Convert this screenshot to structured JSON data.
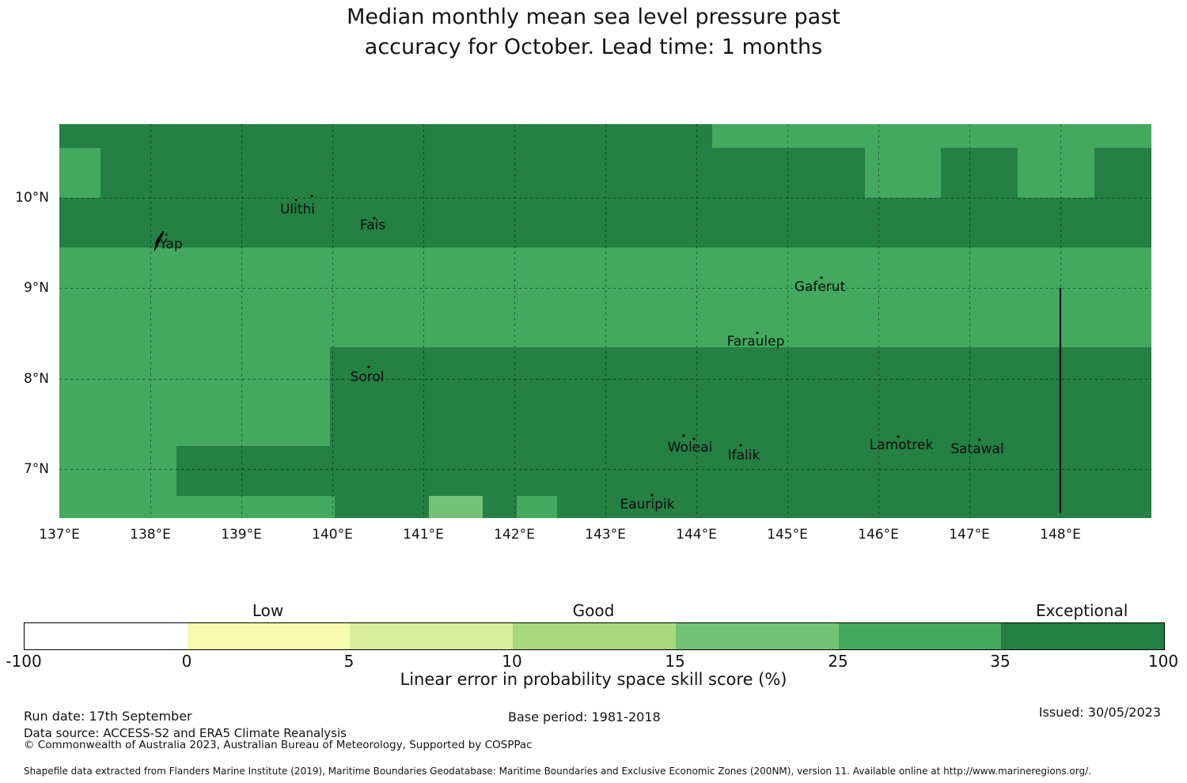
{
  "title": {
    "text": "Median monthly mean sea level pressure past\naccuracy for October. Lead time: 1 months"
  },
  "chart_data": {
    "type": "heatmap",
    "subtype": "categorical skill-score map (binned filled grid over Yap State islands)",
    "axes": {
      "lon_range": [
        137.0,
        149.0
      ],
      "lat_range": [
        6.457,
        10.814
      ],
      "grid": "dashed",
      "x_ticks": [
        {
          "v": 137,
          "label": "137°E"
        },
        {
          "v": 138,
          "label": "138°E"
        },
        {
          "v": 139,
          "label": "139°E"
        },
        {
          "v": 140,
          "label": "140°E"
        },
        {
          "v": 141,
          "label": "141°E"
        },
        {
          "v": 142,
          "label": "142°E"
        },
        {
          "v": 143,
          "label": "143°E"
        },
        {
          "v": 144,
          "label": "144°E"
        },
        {
          "v": 145,
          "label": "145°E"
        },
        {
          "v": 146,
          "label": "146°E"
        },
        {
          "v": 147,
          "label": "147°E"
        },
        {
          "v": 148,
          "label": "148°E"
        }
      ],
      "y_ticks": [
        {
          "v": 10,
          "label": "10°N"
        },
        {
          "v": 9,
          "label": "9°N"
        },
        {
          "v": 8,
          "label": "8°N"
        },
        {
          "v": 7,
          "label": "7°N"
        }
      ]
    },
    "bins": {
      "levels": [
        -100,
        0,
        5,
        10,
        15,
        25,
        35,
        100
      ],
      "colors": [
        "#ffffff",
        "#f7fab2",
        "#d9eda0",
        "#a7d880",
        "#74c276",
        "#42a95f",
        "#248043"
      ],
      "category_labels": [
        {
          "text": "Low",
          "segment_index": 1
        },
        {
          "text": "Good",
          "segment_index": 3
        },
        {
          "text": "Exceptional",
          "segment_index": 6
        }
      ],
      "tick_labels": [
        "-100",
        "0",
        "5",
        "10",
        "15",
        "25",
        "35",
        "100"
      ]
    },
    "map_rows": [
      {
        "lat0": 10.814,
        "lat1": 10.55,
        "segments": [
          [
            137.0,
            144.17,
            6
          ],
          [
            144.17,
            149.0,
            5
          ]
        ]
      },
      {
        "lat0": 10.55,
        "lat1": 10.0,
        "segments": [
          [
            137.0,
            137.45,
            5
          ],
          [
            137.45,
            145.85,
            6
          ],
          [
            145.85,
            146.69,
            5
          ],
          [
            146.69,
            147.53,
            6
          ],
          [
            147.53,
            148.37,
            5
          ],
          [
            148.37,
            149.0,
            6
          ]
        ]
      },
      {
        "lat0": 10.0,
        "lat1": 9.45,
        "segments": [
          [
            137.0,
            149.0,
            6
          ]
        ]
      },
      {
        "lat0": 9.45,
        "lat1": 8.9,
        "segments": [
          [
            137.0,
            149.0,
            5
          ]
        ]
      },
      {
        "lat0": 8.9,
        "lat1": 8.35,
        "segments": [
          [
            137.0,
            149.0,
            5
          ]
        ]
      },
      {
        "lat0": 8.35,
        "lat1": 7.8,
        "segments": [
          [
            137.0,
            139.97,
            5
          ],
          [
            139.97,
            149.0,
            6
          ]
        ]
      },
      {
        "lat0": 7.8,
        "lat1": 7.25,
        "segments": [
          [
            137.0,
            139.97,
            5
          ],
          [
            139.97,
            149.0,
            6
          ]
        ]
      },
      {
        "lat0": 7.25,
        "lat1": 6.7,
        "segments": [
          [
            137.0,
            138.29,
            5
          ],
          [
            138.29,
            149.0,
            6
          ]
        ]
      },
      {
        "lat0": 6.7,
        "lat1": 6.457,
        "segments": [
          [
            137.0,
            140.03,
            5
          ],
          [
            140.03,
            141.06,
            6
          ],
          [
            141.06,
            141.65,
            4
          ],
          [
            141.65,
            142.03,
            6
          ],
          [
            142.03,
            142.47,
            5
          ],
          [
            142.47,
            149.0,
            6
          ]
        ]
      }
    ],
    "islands": [
      {
        "name": "Ulithi",
        "label_lon": 139.62,
        "label_lat": 9.869,
        "dots": [
          [
            139.77,
            10.02
          ],
          [
            139.6,
            9.975
          ]
        ]
      },
      {
        "name": "Fais",
        "label_lon": 140.44,
        "label_lat": 9.694,
        "dots": [
          [
            140.46,
            9.775
          ]
        ]
      },
      {
        "name": "Yap",
        "label_lon": 138.226,
        "label_lat": 9.484,
        "dots": []
      },
      {
        "name": "Gaferut",
        "label_lon": 145.357,
        "label_lat": 9.011,
        "dots": [
          [
            145.37,
            9.115
          ]
        ]
      },
      {
        "name": "Faraulep",
        "label_lon": 144.652,
        "label_lat": 8.408,
        "dots": [
          [
            144.67,
            8.5
          ]
        ]
      },
      {
        "name": "Sorol",
        "label_lon": 140.383,
        "label_lat": 8.014,
        "dots": [
          [
            140.4,
            8.125
          ]
        ]
      },
      {
        "name": "Woleai",
        "label_lon": 143.93,
        "label_lat": 7.235,
        "dots": [
          [
            143.86,
            7.365
          ],
          [
            143.974,
            7.335
          ]
        ]
      },
      {
        "name": "Ifalik",
        "label_lon": 144.522,
        "label_lat": 7.148,
        "dots": [
          [
            144.487,
            7.262
          ]
        ]
      },
      {
        "name": "Lamotrek",
        "label_lon": 146.252,
        "label_lat": 7.262,
        "dots": [
          [
            146.217,
            7.358
          ]
        ]
      },
      {
        "name": "Satawal",
        "label_lon": 147.087,
        "label_lat": 7.218,
        "dots": [
          [
            147.113,
            7.323
          ]
        ]
      },
      {
        "name": "Eauripik",
        "label_lon": 143.461,
        "label_lat": 6.606,
        "dots": [
          [
            143.51,
            6.71
          ]
        ]
      }
    ],
    "boundary_line": {
      "lon": 148.0,
      "lat0": 9.0,
      "lat1": 6.52
    },
    "colorbar_axis_label": "Linear error in probability space skill score (%)"
  },
  "footer": {
    "run_date": "Run date: 17th September",
    "base_period": "Base period: 1981-2018",
    "issued": "Issued: 30/05/2023",
    "data_source": "Data source: ACCESS-S2 and ERA5 Climate Reanalysis",
    "copyright": "© Commonwealth of Australia 2023, Australian Bureau of Meteorology, Supported by COSPPac",
    "shapefile": "Shapefile data extracted from Flanders Marine Institute (2019), Maritime Boundaries Geodatabase: Maritime Boundaries and Exclusive Economic Zones (200NM), version 11. Available online at http://www.marineregions.org/."
  }
}
